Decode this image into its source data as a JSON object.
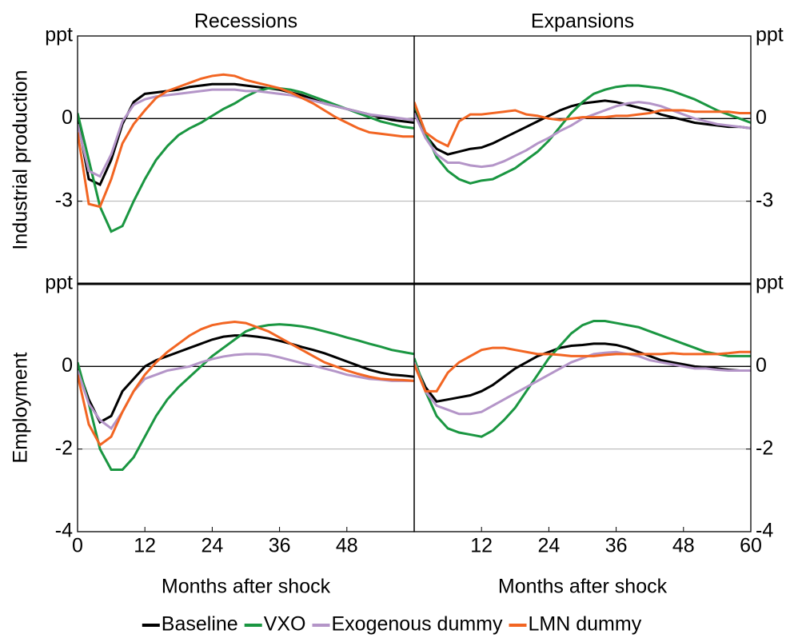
{
  "chart_data": [
    {
      "type": "line",
      "title": "Recessions",
      "ylabel": "Industrial production",
      "x": [
        0,
        2,
        4,
        6,
        8,
        10,
        12,
        14,
        16,
        18,
        20,
        22,
        24,
        26,
        28,
        30,
        32,
        34,
        36,
        38,
        40,
        42,
        44,
        46,
        48,
        50,
        52,
        54,
        56,
        58,
        60
      ],
      "xlim": [
        0,
        60
      ],
      "ylim": [
        -6,
        3
      ],
      "yticks": [
        -3,
        0,
        {
          "value": 3,
          "label": "ppt"
        }
      ],
      "series": [
        {
          "name": "Baseline",
          "color": "#000000",
          "values": [
            0,
            -2.2,
            -2.4,
            -1.5,
            -0.2,
            0.6,
            0.9,
            0.95,
            1.0,
            1.05,
            1.15,
            1.2,
            1.25,
            1.25,
            1.25,
            1.2,
            1.15,
            1.1,
            1.05,
            0.95,
            0.85,
            0.7,
            0.55,
            0.45,
            0.35,
            0.25,
            0.15,
            0.05,
            -0.05,
            -0.1,
            -0.15
          ]
        },
        {
          "name": "VXO",
          "color": "#1a9641",
          "values": [
            0.2,
            -1.5,
            -3.2,
            -4.1,
            -3.9,
            -3.0,
            -2.2,
            -1.5,
            -1.0,
            -0.6,
            -0.35,
            -0.15,
            0.1,
            0.35,
            0.55,
            0.8,
            1.0,
            1.1,
            1.1,
            1.05,
            0.95,
            0.8,
            0.65,
            0.5,
            0.35,
            0.2,
            0.05,
            -0.1,
            -0.2,
            -0.3,
            -0.35
          ]
        },
        {
          "name": "Exogenous dummy",
          "color": "#b495c8",
          "values": [
            -0.2,
            -1.9,
            -2.1,
            -1.3,
            -0.1,
            0.5,
            0.7,
            0.8,
            0.85,
            0.9,
            0.95,
            1.0,
            1.05,
            1.05,
            1.05,
            1.0,
            1.0,
            0.95,
            0.9,
            0.85,
            0.75,
            0.65,
            0.55,
            0.45,
            0.35,
            0.25,
            0.15,
            0.1,
            0.05,
            0,
            -0.05
          ]
        },
        {
          "name": "LMN dummy",
          "color": "#f26522",
          "values": [
            -0.5,
            -3.1,
            -3.2,
            -2.2,
            -0.9,
            -0.2,
            0.3,
            0.75,
            1.0,
            1.15,
            1.3,
            1.45,
            1.55,
            1.6,
            1.55,
            1.4,
            1.3,
            1.2,
            1.1,
            0.95,
            0.75,
            0.55,
            0.3,
            0.05,
            -0.15,
            -0.35,
            -0.5,
            -0.55,
            -0.6,
            -0.65,
            -0.65
          ]
        }
      ]
    },
    {
      "type": "line",
      "title": "Expansions",
      "x": [
        0,
        2,
        4,
        6,
        8,
        10,
        12,
        14,
        16,
        18,
        20,
        22,
        24,
        26,
        28,
        30,
        32,
        34,
        36,
        38,
        40,
        42,
        44,
        46,
        48,
        50,
        52,
        54,
        56,
        58,
        60
      ],
      "xlim": [
        0,
        60
      ],
      "ylim": [
        -6,
        3
      ],
      "yticks": [
        -3,
        0,
        {
          "value": 3,
          "label": "ppt"
        }
      ],
      "series": [
        {
          "color": "#000000",
          "values": [
            0.3,
            -0.6,
            -1.1,
            -1.3,
            -1.2,
            -1.1,
            -1.05,
            -0.9,
            -0.7,
            -0.5,
            -0.3,
            -0.1,
            0.1,
            0.3,
            0.45,
            0.55,
            0.6,
            0.65,
            0.6,
            0.5,
            0.4,
            0.3,
            0.15,
            0.05,
            -0.05,
            -0.15,
            -0.2,
            -0.25,
            -0.3,
            -0.3,
            -0.35
          ]
        },
        {
          "color": "#1a9641",
          "values": [
            0.5,
            -0.5,
            -1.4,
            -1.9,
            -2.2,
            -2.35,
            -2.25,
            -2.2,
            -2.0,
            -1.8,
            -1.5,
            -1.2,
            -0.8,
            -0.3,
            0.2,
            0.6,
            0.9,
            1.05,
            1.15,
            1.2,
            1.2,
            1.15,
            1.1,
            1.0,
            0.85,
            0.7,
            0.5,
            0.3,
            0.15,
            0,
            -0.15
          ]
        },
        {
          "color": "#b495c8",
          "values": [
            0.2,
            -0.7,
            -1.3,
            -1.6,
            -1.6,
            -1.7,
            -1.75,
            -1.7,
            -1.55,
            -1.35,
            -1.15,
            -0.9,
            -0.7,
            -0.45,
            -0.25,
            0,
            0.15,
            0.3,
            0.45,
            0.55,
            0.6,
            0.55,
            0.45,
            0.3,
            0.15,
            0,
            -0.1,
            -0.2,
            -0.25,
            -0.3,
            -0.35
          ]
        },
        {
          "color": "#f26522",
          "values": [
            0.6,
            -0.5,
            -0.8,
            -1.0,
            -0.1,
            0.15,
            0.15,
            0.2,
            0.25,
            0.3,
            0.15,
            0.1,
            0.0,
            -0.05,
            0.0,
            0.05,
            0.05,
            0.05,
            0.1,
            0.1,
            0.15,
            0.2,
            0.3,
            0.3,
            0.3,
            0.25,
            0.25,
            0.25,
            0.25,
            0.2,
            0.2
          ]
        }
      ]
    },
    {
      "type": "line",
      "ylabel": "Employment",
      "xlabel": "Months after shock",
      "x": [
        0,
        2,
        4,
        6,
        8,
        10,
        12,
        14,
        16,
        18,
        20,
        22,
        24,
        26,
        28,
        30,
        32,
        34,
        36,
        38,
        40,
        42,
        44,
        46,
        48,
        50,
        52,
        54,
        56,
        58,
        60
      ],
      "xlim": [
        0,
        60
      ],
      "ylim": [
        -4,
        2
      ],
      "xticks": [
        0,
        12,
        24,
        36,
        48
      ],
      "yticks": [
        -4,
        -2,
        0,
        {
          "value": 2,
          "label": "ppt"
        }
      ],
      "series": [
        {
          "color": "#000000",
          "values": [
            0,
            -0.8,
            -1.35,
            -1.2,
            -0.6,
            -0.3,
            0.0,
            0.15,
            0.25,
            0.35,
            0.45,
            0.55,
            0.65,
            0.72,
            0.75,
            0.75,
            0.72,
            0.68,
            0.62,
            0.55,
            0.47,
            0.4,
            0.32,
            0.22,
            0.12,
            0.02,
            -0.08,
            -0.15,
            -0.2,
            -0.22,
            -0.25
          ]
        },
        {
          "color": "#1a9641",
          "values": [
            0.1,
            -0.9,
            -2.0,
            -2.5,
            -2.5,
            -2.2,
            -1.7,
            -1.2,
            -0.8,
            -0.5,
            -0.25,
            0,
            0.25,
            0.45,
            0.65,
            0.85,
            0.95,
            1.0,
            1.02,
            1.0,
            0.97,
            0.92,
            0.85,
            0.78,
            0.7,
            0.63,
            0.55,
            0.48,
            0.4,
            0.35,
            0.3
          ]
        },
        {
          "color": "#b495c8",
          "values": [
            -0.1,
            -0.9,
            -1.3,
            -1.5,
            -1.1,
            -0.6,
            -0.3,
            -0.2,
            -0.1,
            -0.05,
            0,
            0.1,
            0.18,
            0.24,
            0.28,
            0.3,
            0.3,
            0.28,
            0.22,
            0.15,
            0.08,
            0.02,
            -0.05,
            -0.12,
            -0.2,
            -0.25,
            -0.3,
            -0.32,
            -0.35,
            -0.35,
            -0.35
          ]
        },
        {
          "color": "#f26522",
          "values": [
            -0.2,
            -1.4,
            -1.9,
            -1.7,
            -1.1,
            -0.6,
            -0.2,
            0.1,
            0.35,
            0.55,
            0.75,
            0.9,
            1.0,
            1.05,
            1.08,
            1.05,
            0.95,
            0.85,
            0.7,
            0.55,
            0.4,
            0.25,
            0.1,
            0,
            -0.1,
            -0.18,
            -0.25,
            -0.3,
            -0.32,
            -0.33,
            -0.35
          ]
        }
      ]
    },
    {
      "type": "line",
      "xlabel": "Months after shock",
      "x": [
        0,
        2,
        4,
        6,
        8,
        10,
        12,
        14,
        16,
        18,
        20,
        22,
        24,
        26,
        28,
        30,
        32,
        34,
        36,
        38,
        40,
        42,
        44,
        46,
        48,
        50,
        52,
        54,
        56,
        58,
        60
      ],
      "xlim": [
        0,
        60
      ],
      "ylim": [
        -4,
        2
      ],
      "xticks": [
        12,
        24,
        36,
        48,
        60
      ],
      "yticks": [
        -4,
        -2,
        0,
        {
          "value": 2,
          "label": "ppt"
        }
      ],
      "series": [
        {
          "color": "#000000",
          "values": [
            0.1,
            -0.5,
            -0.85,
            -0.8,
            -0.75,
            -0.7,
            -0.6,
            -0.45,
            -0.25,
            -0.05,
            0.1,
            0.25,
            0.35,
            0.45,
            0.5,
            0.52,
            0.55,
            0.55,
            0.52,
            0.45,
            0.35,
            0.25,
            0.15,
            0.1,
            0.05,
            0,
            -0.02,
            -0.05,
            -0.08,
            -0.1,
            -0.1
          ]
        },
        {
          "color": "#1a9641",
          "values": [
            0.2,
            -0.6,
            -1.2,
            -1.5,
            -1.6,
            -1.65,
            -1.7,
            -1.55,
            -1.3,
            -1.0,
            -0.6,
            -0.2,
            0.2,
            0.5,
            0.8,
            1.0,
            1.1,
            1.1,
            1.05,
            1.0,
            0.95,
            0.85,
            0.75,
            0.65,
            0.55,
            0.45,
            0.35,
            0.3,
            0.25,
            0.25,
            0.25
          ]
        },
        {
          "color": "#b495c8",
          "values": [
            0.1,
            -0.6,
            -0.95,
            -1.05,
            -1.15,
            -1.15,
            -1.1,
            -0.95,
            -0.8,
            -0.65,
            -0.5,
            -0.35,
            -0.2,
            -0.05,
            0.1,
            0.2,
            0.3,
            0.33,
            0.35,
            0.3,
            0.25,
            0.15,
            0.1,
            0.05,
            0,
            -0.05,
            -0.05,
            -0.08,
            -0.1,
            -0.1,
            -0.1
          ]
        },
        {
          "color": "#f26522",
          "values": [
            0.05,
            -0.6,
            -0.6,
            -0.15,
            0.1,
            0.25,
            0.4,
            0.45,
            0.45,
            0.4,
            0.35,
            0.3,
            0.3,
            0.28,
            0.25,
            0.25,
            0.25,
            0.28,
            0.3,
            0.3,
            0.3,
            0.3,
            0.3,
            0.32,
            0.3,
            0.3,
            0.3,
            0.3,
            0.32,
            0.35,
            0.35
          ]
        }
      ]
    }
  ]
}
